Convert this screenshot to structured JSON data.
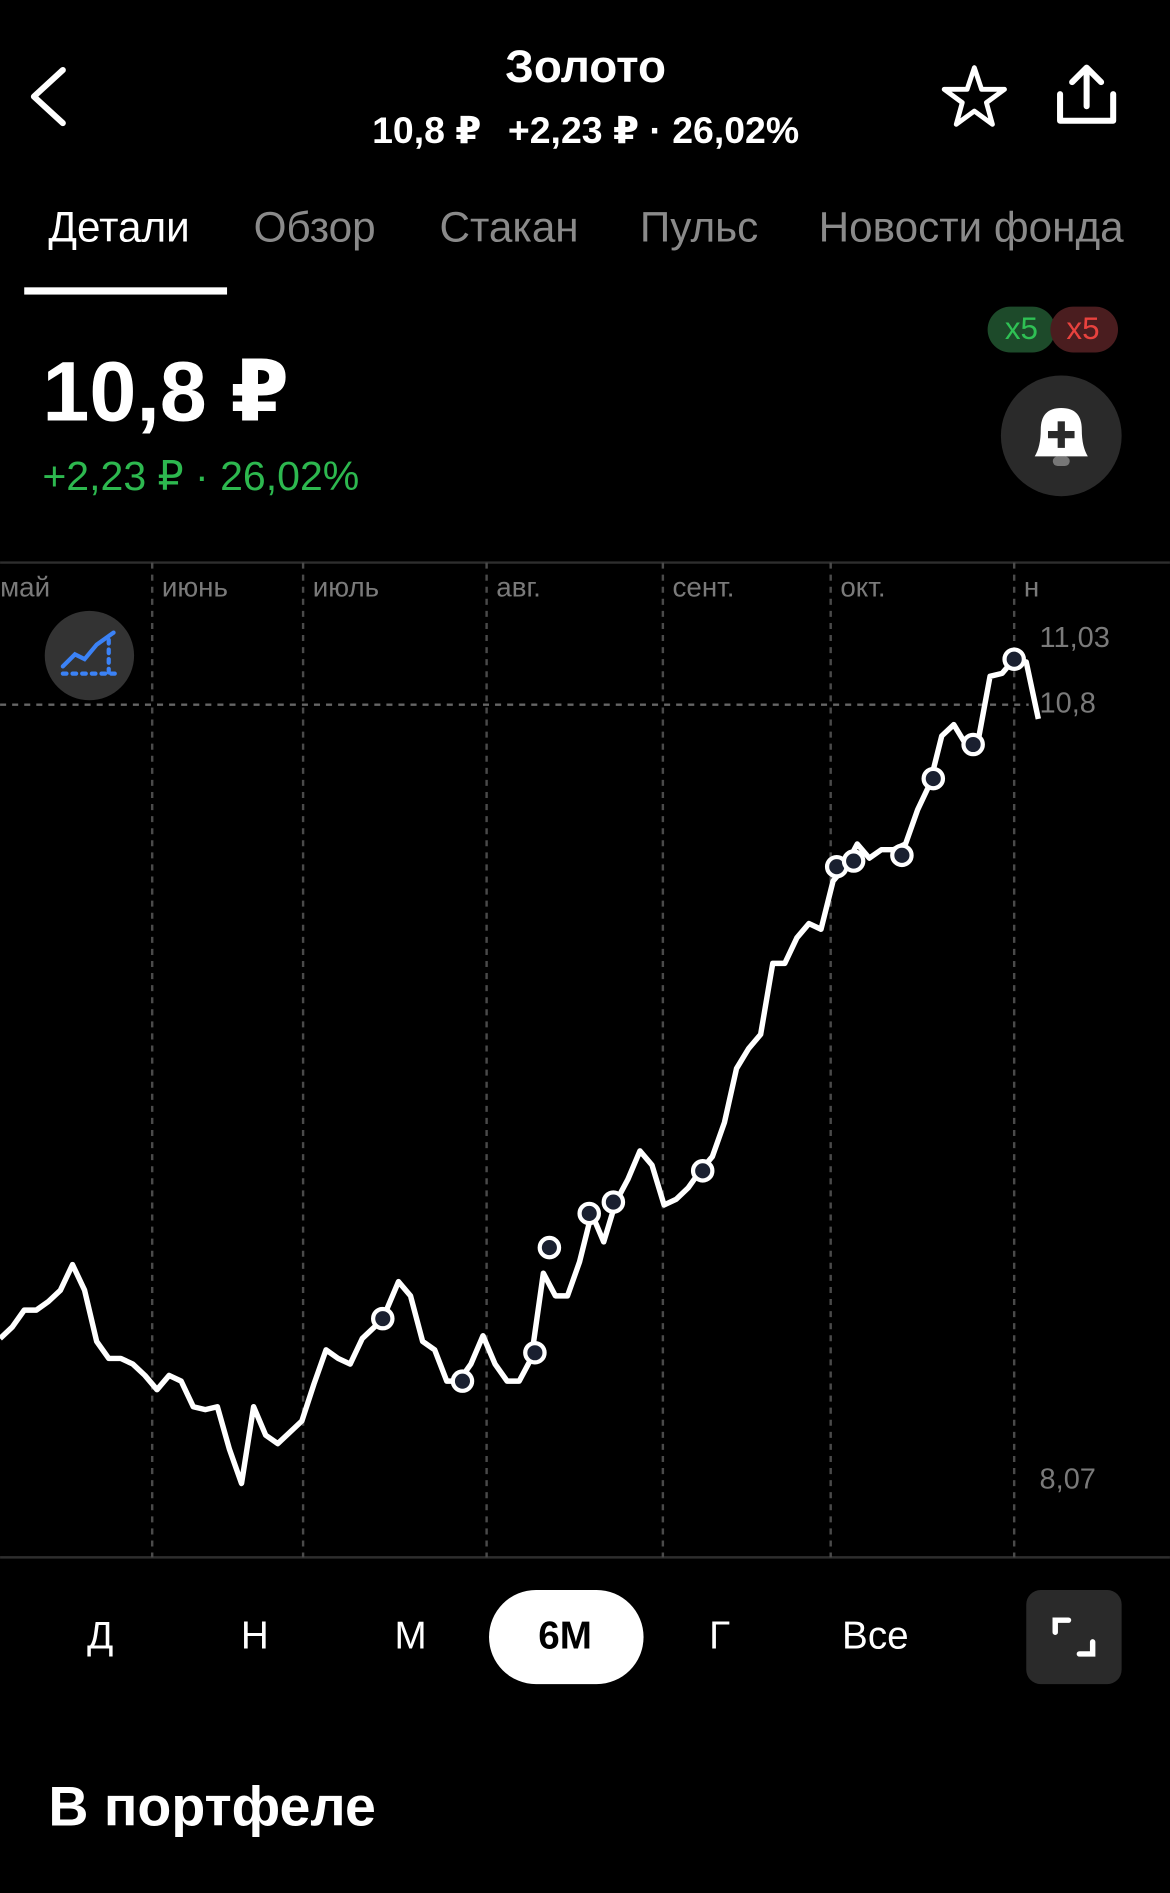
{
  "header": {
    "title": "Золото",
    "price": "10,8 ₽",
    "change": "+2,23 ₽ · 26,02%"
  },
  "tabs": {
    "items": [
      "Детали",
      "Обзор",
      "Стакан",
      "Пульс",
      "Новости фонда"
    ],
    "active": 0
  },
  "quote": {
    "price": "10,8 ₽",
    "change": "+2,23 ₽ · 26,02%",
    "badges": [
      "x5",
      "x5"
    ]
  },
  "chart": {
    "type": "line",
    "color": "#ffffff",
    "values": [
      8.57,
      8.61,
      8.67,
      8.67,
      8.7,
      8.74,
      8.83,
      8.74,
      8.56,
      8.5,
      8.5,
      8.48,
      8.44,
      8.39,
      8.44,
      8.42,
      8.33,
      8.32,
      8.33,
      8.18,
      8.06,
      8.33,
      8.23,
      8.2,
      8.24,
      8.28,
      8.41,
      8.53,
      8.5,
      8.48,
      8.57,
      8.61,
      8.67,
      8.77,
      8.72,
      8.56,
      8.53,
      8.42,
      8.42,
      8.48,
      8.58,
      8.48,
      8.42,
      8.42,
      8.5,
      8.8,
      8.72,
      8.72,
      8.84,
      9.01,
      8.91,
      9.05,
      9.13,
      9.23,
      9.18,
      9.04,
      9.06,
      9.1,
      9.16,
      9.21,
      9.33,
      9.52,
      9.59,
      9.64,
      9.89,
      9.89,
      9.98,
      10.03,
      10.01,
      10.18,
      10.23,
      10.31,
      10.26,
      10.29,
      10.29,
      10.31,
      10.43,
      10.52,
      10.69,
      10.73,
      10.66,
      10.67,
      10.9,
      10.91,
      10.96,
      10.95,
      10.75
    ],
    "xlim": [
      0,
      96.9
    ],
    "xticks": [
      {
        "value": -0.8,
        "label": "май"
      },
      {
        "value": 12.6,
        "label": "июнь"
      },
      {
        "value": 25.1,
        "label": "июль"
      },
      {
        "value": 40.3,
        "label": "авг."
      },
      {
        "value": 54.9,
        "label": "сент."
      },
      {
        "value": 68.8,
        "label": "окт."
      },
      {
        "value": 84.0,
        "label": "н"
      }
    ],
    "ylim": [
      7.8,
      11.3
    ],
    "yticks": [
      {
        "value": 11.03,
        "label": "11,03"
      },
      {
        "value": 8.07,
        "label": "8,07"
      }
    ],
    "price_line": {
      "value": 10.8,
      "label": "10,8"
    },
    "markers": {
      "x": [
        31.7,
        38.3,
        44.3,
        45.5,
        48.8,
        50.8,
        58.2,
        69.3,
        70.7,
        74.7,
        77.3,
        80.6,
        84.0
      ],
      "y": [
        8.64,
        8.42,
        8.52,
        8.89,
        9.01,
        9.05,
        9.16,
        10.23,
        10.25,
        10.27,
        10.54,
        10.66,
        10.96
      ]
    }
  },
  "periods": {
    "items": [
      "Д",
      "Н",
      "М",
      "6М",
      "Г",
      "Все"
    ],
    "active": 3
  },
  "section_title": "В портфеле"
}
